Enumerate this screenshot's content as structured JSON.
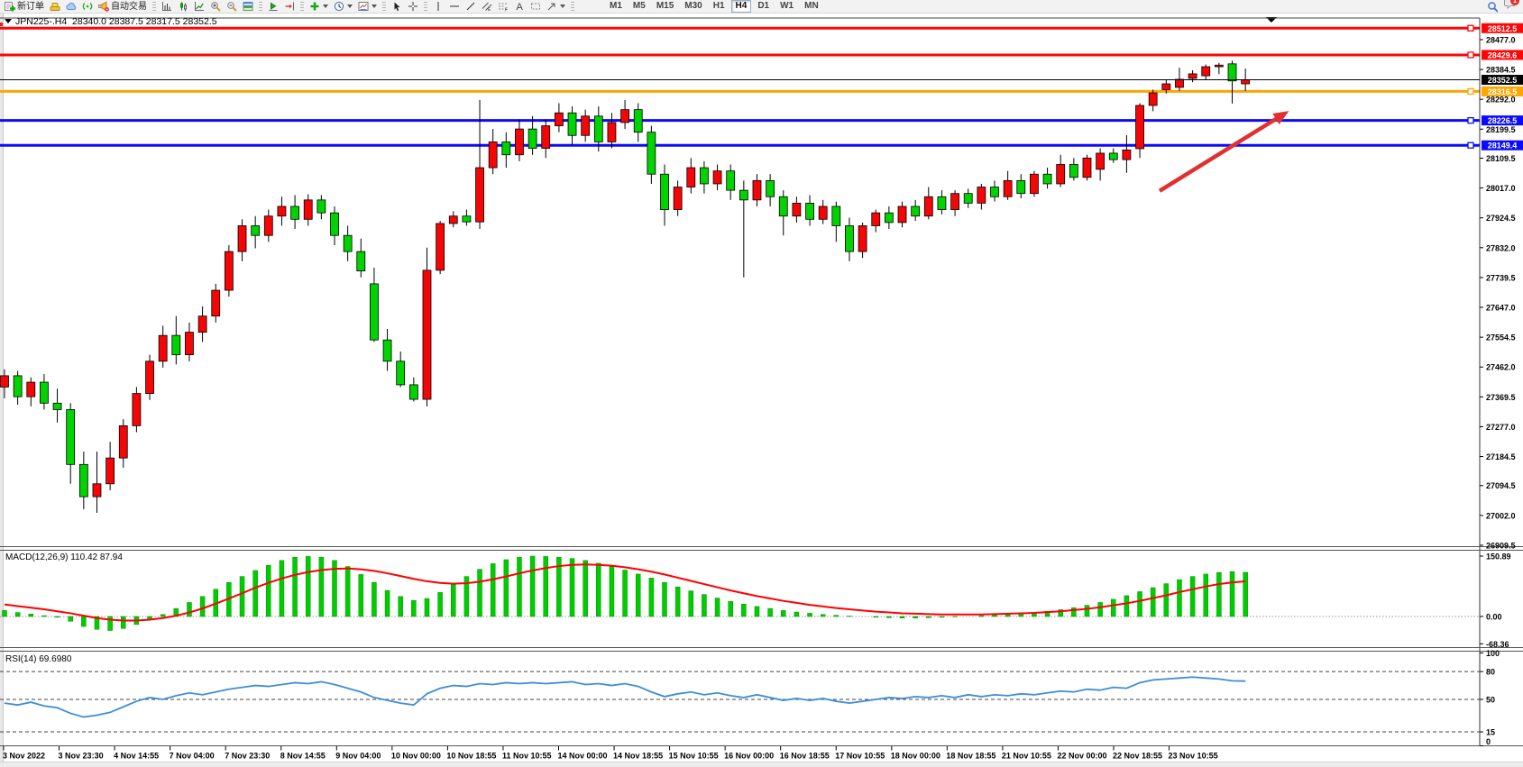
{
  "toolbar": {
    "new_order": "新订单",
    "autotrading": "自动交易",
    "timeframes": [
      "M1",
      "M5",
      "M15",
      "M30",
      "H1",
      "H4",
      "D1",
      "W1",
      "MN"
    ],
    "active_timeframe": "H4",
    "notification_count": "1",
    "icon_names": [
      "new-order",
      "gold-bars",
      "cloud",
      "signals",
      "autotrading-megaphone",
      "bar-chart",
      "candle-chart",
      "line-chart",
      "zoom-in",
      "zoom-out",
      "tile-windows",
      "auto-scroll",
      "chart-shift",
      "add-indicator",
      "timeframe-clock",
      "chart-template",
      "cursor",
      "crosshair",
      "vertical-line",
      "horizontal-line",
      "trendline",
      "equidistant-channel",
      "fibonacci",
      "text",
      "label",
      "shapes",
      "search",
      "chat-bubble"
    ]
  },
  "chart": {
    "symbol": "JPN225-",
    "period": "H4",
    "ohlc": {
      "open": "28340.0",
      "high": "28387.5",
      "low": "28317.5",
      "close": "28352.5"
    }
  },
  "chart_data": [
    {
      "type": "candlestick",
      "title": "JPN225-.H4  28340.0 28387.5 28317.5 28352.5",
      "bull_color": "#f40606",
      "bear_color": "#00d300",
      "wick_color": "#000000",
      "ylim": [
        26901,
        28544
      ],
      "y_ticks": [
        28477.0,
        28384.5,
        28292.0,
        28199.5,
        28109.5,
        28017.0,
        27924.5,
        27832.0,
        27739.5,
        27647.0,
        27554.5,
        27462.0,
        27369.5,
        27277.0,
        27184.5,
        27094.5,
        27002.0,
        26909.5
      ],
      "x_labels": [
        "3 Nov 2022",
        "3 Nov 23:30",
        "4 Nov 14:55",
        "7 Nov 04:00",
        "7 Nov 23:30",
        "8 Nov 14:55",
        "9 Nov 04:00",
        "10 Nov 00:00",
        "10 Nov 18:55",
        "11 Nov 10:55",
        "14 Nov 00:00",
        "14 Nov 18:55",
        "15 Nov 10:55",
        "16 Nov 00:00",
        "16 Nov 18:55",
        "17 Nov 10:55",
        "18 Nov 00:00",
        "18 Nov 18:55",
        "21 Nov 10:55",
        "22 Nov 00:00",
        "22 Nov 18:55",
        "23 Nov 10:55"
      ],
      "levels": [
        {
          "price": 28512.5,
          "color": "#fe0606",
          "width": 3
        },
        {
          "price": 28429.6,
          "color": "#fe0606",
          "width": 3
        },
        {
          "price": 28352.5,
          "color": "#000000",
          "width": 1,
          "is_current": true
        },
        {
          "price": 28316.5,
          "color": "#ffa500",
          "width": 3
        },
        {
          "price": 28226.5,
          "color": "#0a0aff",
          "width": 3
        },
        {
          "price": 28149.4,
          "color": "#0a0aff",
          "width": 3
        }
      ],
      "annotation_arrow": {
        "from_bar": 87.5,
        "from_price": 28008,
        "to_bar": 97.3,
        "to_price": 28256,
        "color": "#e03030"
      },
      "candles": [
        [
          27400,
          27455,
          27365,
          27435
        ],
        [
          27435,
          27450,
          27345,
          27370
        ],
        [
          27370,
          27430,
          27340,
          27415
        ],
        [
          27415,
          27440,
          27330,
          27350
        ],
        [
          27350,
          27395,
          27290,
          27330
        ],
        [
          27330,
          27350,
          27100,
          27160
        ],
        [
          27160,
          27200,
          27021,
          27060
        ],
        [
          27060,
          27200,
          27010,
          27100
        ],
        [
          27100,
          27230,
          27080,
          27180
        ],
        [
          27180,
          27300,
          27150,
          27280
        ],
        [
          27280,
          27400,
          27260,
          27380
        ],
        [
          27380,
          27500,
          27360,
          27480
        ],
        [
          27480,
          27590,
          27460,
          27560
        ],
        [
          27560,
          27620,
          27470,
          27500
        ],
        [
          27500,
          27600,
          27480,
          27570
        ],
        [
          27570,
          27650,
          27540,
          27620
        ],
        [
          27620,
          27720,
          27600,
          27700
        ],
        [
          27700,
          27840,
          27680,
          27820
        ],
        [
          27820,
          27920,
          27790,
          27900
        ],
        [
          27900,
          27930,
          27830,
          27870
        ],
        [
          27870,
          27950,
          27850,
          27930
        ],
        [
          27930,
          27990,
          27900,
          27960
        ],
        [
          27960,
          27995,
          27890,
          27920
        ],
        [
          27920,
          27998,
          27900,
          27980
        ],
        [
          27980,
          27995,
          27920,
          27940
        ],
        [
          27940,
          27960,
          27840,
          27870
        ],
        [
          27870,
          27900,
          27790,
          27820
        ],
        [
          27820,
          27860,
          27740,
          27760
        ],
        [
          27720,
          27770,
          27540,
          27546
        ],
        [
          27546,
          27580,
          27450,
          27480
        ],
        [
          27480,
          27510,
          27400,
          27407
        ],
        [
          27407,
          27430,
          27355,
          27362
        ],
        [
          27362,
          27832,
          27340,
          27762
        ],
        [
          27762,
          27915,
          27750,
          27907
        ],
        [
          27907,
          27945,
          27895,
          27930
        ],
        [
          27930,
          27950,
          27900,
          27912
        ],
        [
          27912,
          28290,
          27890,
          28080
        ],
        [
          28080,
          28200,
          28060,
          28160
        ],
        [
          28160,
          28190,
          28080,
          28120
        ],
        [
          28120,
          28230,
          28100,
          28200
        ],
        [
          28200,
          28240,
          28120,
          28140
        ],
        [
          28140,
          28230,
          28110,
          28210
        ],
        [
          28210,
          28280,
          28190,
          28250
        ],
        [
          28250,
          28270,
          28150,
          28180
        ],
        [
          28180,
          28260,
          28160,
          28240
        ],
        [
          28240,
          28270,
          28130,
          28160
        ],
        [
          28160,
          28250,
          28140,
          28220
        ],
        [
          28220,
          28290,
          28200,
          28260
        ],
        [
          28260,
          28280,
          28160,
          28190
        ],
        [
          28190,
          28210,
          28030,
          28060
        ],
        [
          28060,
          28090,
          27900,
          27950
        ],
        [
          27950,
          28040,
          27930,
          28020
        ],
        [
          28020,
          28110,
          28000,
          28080
        ],
        [
          28080,
          28100,
          28000,
          28030
        ],
        [
          28030,
          28090,
          28010,
          28070
        ],
        [
          28070,
          28090,
          27980,
          28010
        ],
        [
          28010,
          28040,
          27740,
          27980
        ],
        [
          27980,
          28060,
          27960,
          28040
        ],
        [
          28040,
          28060,
          27960,
          27990
        ],
        [
          27990,
          28010,
          27870,
          27930
        ],
        [
          27930,
          27990,
          27910,
          27970
        ],
        [
          27970,
          27995,
          27900,
          27920
        ],
        [
          27920,
          27980,
          27905,
          27960
        ],
        [
          27960,
          27975,
          27850,
          27900
        ],
        [
          27900,
          27925,
          27790,
          27820
        ],
        [
          27820,
          27910,
          27800,
          27900
        ],
        [
          27900,
          27950,
          27880,
          27940
        ],
        [
          27940,
          27960,
          27890,
          27910
        ],
        [
          27910,
          27975,
          27895,
          27960
        ],
        [
          27960,
          27980,
          27915,
          27930
        ],
        [
          27930,
          28020,
          27920,
          27990
        ],
        [
          27990,
          28010,
          27935,
          27950
        ],
        [
          27950,
          28010,
          27930,
          28000
        ],
        [
          28000,
          28015,
          27955,
          27970
        ],
        [
          27970,
          28030,
          27950,
          28020
        ],
        [
          28020,
          28040,
          27975,
          27990
        ],
        [
          27990,
          28070,
          27980,
          28040
        ],
        [
          28040,
          28060,
          27985,
          28000
        ],
        [
          28000,
          28070,
          27990,
          28060
        ],
        [
          28060,
          28080,
          28015,
          28030
        ],
        [
          28030,
          28120,
          28020,
          28090
        ],
        [
          28090,
          28110,
          28040,
          28050
        ],
        [
          28050,
          28120,
          28040,
          28110
        ],
        [
          28075,
          28140,
          28040,
          28125
        ],
        [
          28125,
          28140,
          28095,
          28105
        ],
        [
          28105,
          28181,
          28064,
          28135
        ],
        [
          28139,
          28280,
          28110,
          28273
        ],
        [
          28273,
          28322,
          28255,
          28312
        ],
        [
          28322,
          28352,
          28310,
          28340
        ],
        [
          28329,
          28390,
          28318,
          28354
        ],
        [
          28357,
          28382,
          28345,
          28371
        ],
        [
          28365,
          28400,
          28352,
          28393
        ],
        [
          28393,
          28405,
          28370,
          28398
        ],
        [
          28402,
          28412,
          28279,
          28349
        ],
        [
          28340,
          28387.5,
          28317.5,
          28352.5
        ]
      ]
    },
    {
      "type": "bar",
      "name": "MACD",
      "label": "MACD(12,26,9) 110.42 87.94",
      "params": "12,26,9",
      "value_main": 110.42,
      "value_signal": 87.94,
      "histogram_color": "#00cd00",
      "signal_color": "#ff0000",
      "y_ticks": [
        150.89,
        0,
        -68.36
      ],
      "ylim": [
        -76,
        167
      ],
      "histogram": [
        15,
        10,
        6,
        2,
        -2,
        -12,
        -25,
        -32,
        -35,
        -30,
        -20,
        -8,
        5,
        20,
        35,
        50,
        68,
        85,
        100,
        115,
        128,
        140,
        148,
        150,
        148,
        140,
        125,
        105,
        85,
        65,
        50,
        40,
        45,
        60,
        80,
        100,
        118,
        132,
        142,
        148,
        150.89,
        150,
        148,
        145,
        140,
        133,
        125,
        116,
        106,
        96,
        85,
        74,
        64,
        55,
        46,
        38,
        31,
        25,
        20,
        15,
        11,
        8,
        5,
        3,
        1,
        0,
        -2,
        -3,
        -4,
        -4,
        -3,
        -2,
        -1,
        0,
        2,
        4,
        6,
        8,
        10,
        13,
        17,
        22,
        28,
        35,
        43,
        52,
        62,
        72,
        82,
        92,
        100,
        106,
        110,
        112,
        110.42
      ],
      "signal": [
        30,
        26,
        22,
        18,
        13,
        8,
        2,
        -4,
        -8,
        -10,
        -10,
        -8,
        -4,
        2,
        10,
        20,
        32,
        45,
        58,
        72,
        84,
        95,
        104,
        111,
        116,
        119,
        120,
        118,
        114,
        108,
        101,
        94,
        88,
        84,
        82,
        83,
        87,
        93,
        100,
        108,
        115,
        121,
        126,
        129,
        130,
        129,
        127,
        123,
        118,
        112,
        105,
        97,
        89,
        81,
        73,
        65,
        58,
        51,
        45,
        39,
        34,
        29,
        25,
        21,
        18,
        15,
        12,
        10,
        8,
        7,
        6,
        5,
        5,
        5,
        5,
        6,
        7,
        8,
        9,
        11,
        13,
        16,
        19,
        23,
        28,
        33,
        39,
        46,
        53,
        61,
        68,
        75,
        81,
        85,
        87.94
      ]
    },
    {
      "type": "line",
      "name": "RSI",
      "label": "RSI(14) 69.6980",
      "period_param": 14,
      "value": 69.698,
      "line_color": "#3e8ed8",
      "levels": [
        80,
        50,
        15
      ],
      "y_ticks": [
        100,
        80,
        50,
        15,
        0
      ],
      "ylim": [
        0,
        100
      ],
      "values": [
        46,
        44,
        47,
        43,
        41,
        35,
        31,
        33,
        36,
        42,
        48,
        52,
        50,
        54,
        57,
        55,
        58,
        61,
        63,
        65,
        64,
        66,
        68,
        67,
        69,
        66,
        62,
        58,
        52,
        49,
        46,
        44,
        56,
        62,
        65,
        64,
        67,
        66,
        68,
        67,
        68,
        67,
        68,
        69,
        66,
        67,
        65,
        67,
        64,
        58,
        53,
        56,
        58,
        55,
        57,
        54,
        52,
        55,
        52,
        49,
        51,
        49,
        51,
        48,
        46,
        48,
        50,
        52,
        51,
        53,
        52,
        54,
        52,
        55,
        53,
        55,
        54,
        56,
        55,
        57,
        59,
        58,
        61,
        60,
        63,
        62,
        68,
        71,
        72,
        73,
        74,
        73,
        72,
        70,
        69.7
      ]
    }
  ]
}
